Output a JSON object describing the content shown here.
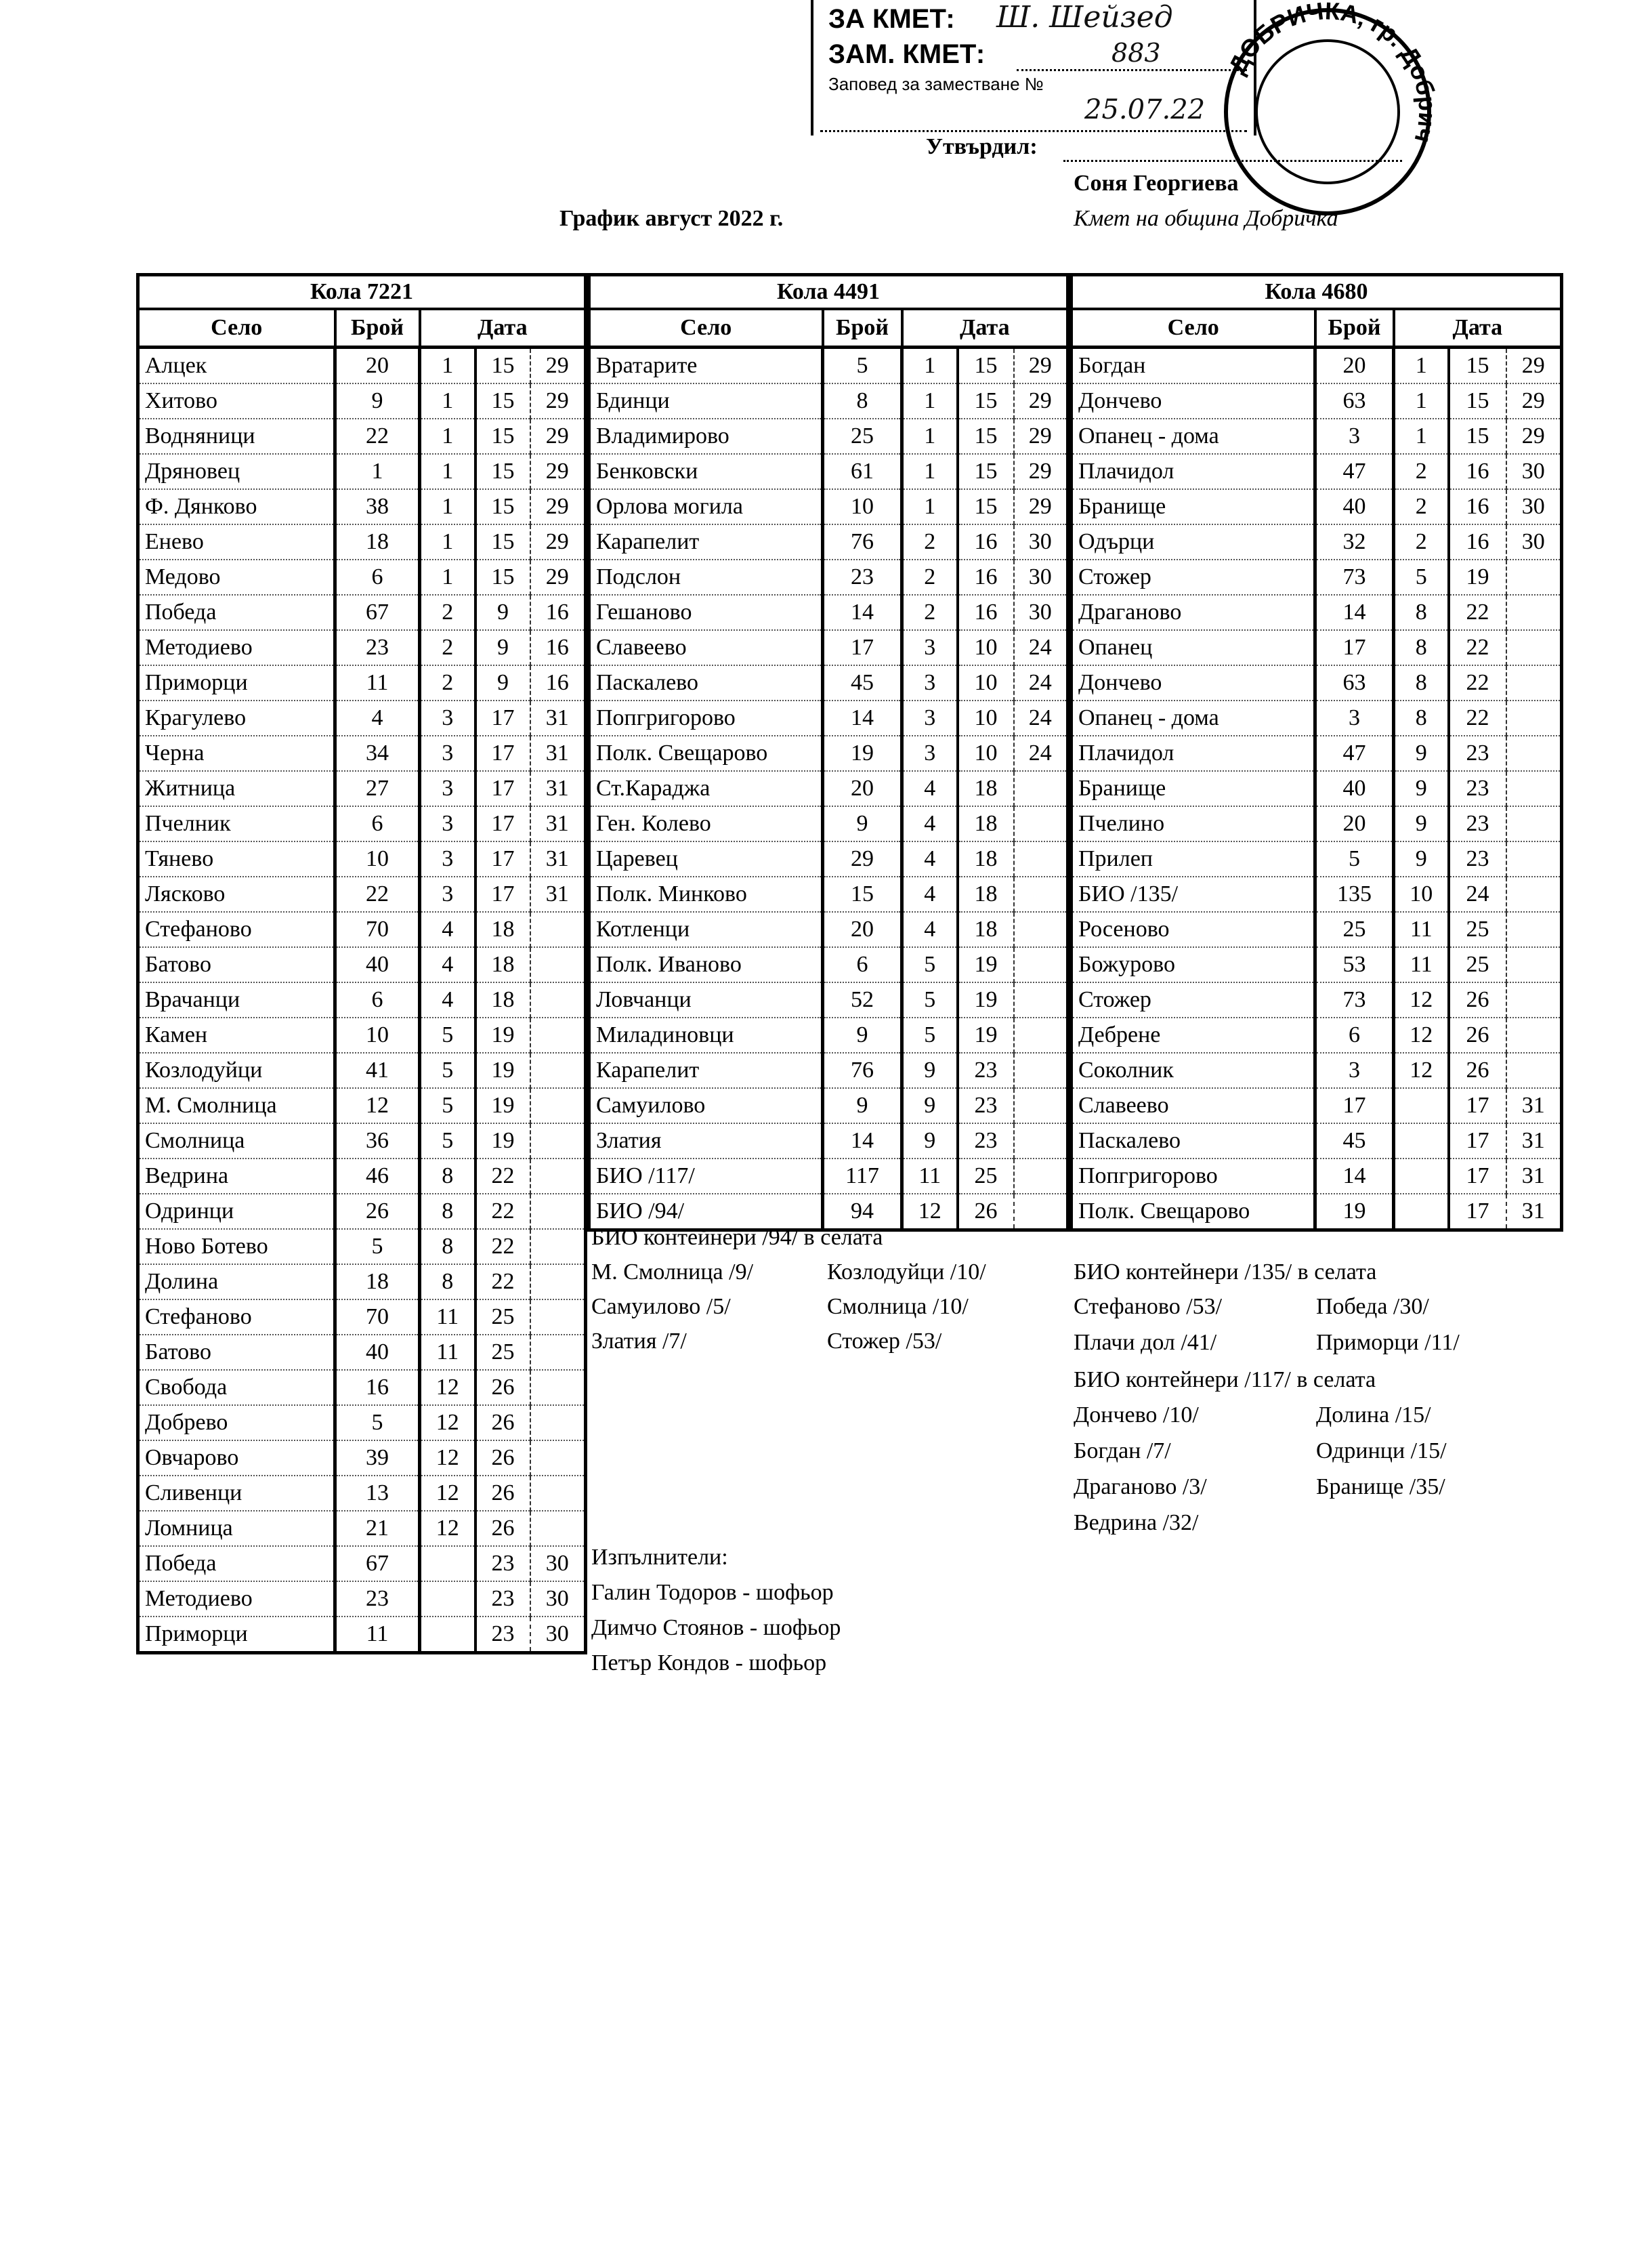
{
  "stamp": {
    "line1": "ЗА КМЕТ:",
    "line2": "ЗАМ. КМЕТ:",
    "line3": "Заповед за заместване №",
    "signature": "Ш. Шейзед",
    "order_number": "883",
    "order_date": "25.07.22"
  },
  "seal": {
    "text": "ДОБРИЧКА, гр. Добрич"
  },
  "approval": {
    "label": "Утвърдил:",
    "name": "Соня Георгиева",
    "position": "Кмет  на община Добричка"
  },
  "title": "График август 2022 г.",
  "column_headers": {
    "village": "Село",
    "count": "Брой",
    "date": "Дата"
  },
  "tables": [
    {
      "car": "Кола 7221",
      "rows": [
        [
          "Алцек",
          "20",
          "1",
          "15",
          "29"
        ],
        [
          "Хитово",
          "9",
          "1",
          "15",
          "29"
        ],
        [
          "Водняници",
          "22",
          "1",
          "15",
          "29"
        ],
        [
          "Дряновец",
          "1",
          "1",
          "15",
          "29"
        ],
        [
          "Ф. Дянково",
          "38",
          "1",
          "15",
          "29"
        ],
        [
          "Енево",
          "18",
          "1",
          "15",
          "29"
        ],
        [
          "Медово",
          "6",
          "1",
          "15",
          "29"
        ],
        [
          "Победа",
          "67",
          "2",
          "9",
          "16"
        ],
        [
          "Методиево",
          "23",
          "2",
          "9",
          "16"
        ],
        [
          "Приморци",
          "11",
          "2",
          "9",
          "16"
        ],
        [
          "Крагулево",
          "4",
          "3",
          "17",
          "31"
        ],
        [
          "Черна",
          "34",
          "3",
          "17",
          "31"
        ],
        [
          "Житница",
          "27",
          "3",
          "17",
          "31"
        ],
        [
          "Пчелник",
          "6",
          "3",
          "17",
          "31"
        ],
        [
          "Тянево",
          "10",
          "3",
          "17",
          "31"
        ],
        [
          "Лясково",
          "22",
          "3",
          "17",
          "31"
        ],
        [
          "Стефаново",
          "70",
          "4",
          "18",
          ""
        ],
        [
          "Батово",
          "40",
          "4",
          "18",
          ""
        ],
        [
          "Врачанци",
          "6",
          "4",
          "18",
          ""
        ],
        [
          "Камен",
          "10",
          "5",
          "19",
          ""
        ],
        [
          "Козлодуйци",
          "41",
          "5",
          "19",
          ""
        ],
        [
          "М. Смолница",
          "12",
          "5",
          "19",
          ""
        ],
        [
          "Смолница",
          "36",
          "5",
          "19",
          ""
        ],
        [
          "Ведрина",
          "46",
          "8",
          "22",
          ""
        ],
        [
          "Одринци",
          "26",
          "8",
          "22",
          ""
        ],
        [
          "Ново Ботево",
          "5",
          "8",
          "22",
          ""
        ],
        [
          "Долина",
          "18",
          "8",
          "22",
          ""
        ],
        [
          "Стефаново",
          "70",
          "11",
          "25",
          ""
        ],
        [
          "Батово",
          "40",
          "11",
          "25",
          ""
        ],
        [
          "Свобода",
          "16",
          "12",
          "26",
          ""
        ],
        [
          "Добрево",
          "5",
          "12",
          "26",
          ""
        ],
        [
          "Овчарово",
          "39",
          "12",
          "26",
          ""
        ],
        [
          "Сливенци",
          "13",
          "12",
          "26",
          ""
        ],
        [
          "Ломница",
          "21",
          "12",
          "26",
          ""
        ],
        [
          "Победа",
          "67",
          "",
          "23",
          "30"
        ],
        [
          "Методиево",
          "23",
          "",
          "23",
          "30"
        ],
        [
          "Приморци",
          "11",
          "",
          "23",
          "30"
        ]
      ]
    },
    {
      "car": "Кола 4491",
      "rows": [
        [
          "Вратарите",
          "5",
          "1",
          "15",
          "29"
        ],
        [
          "Бдинци",
          "8",
          "1",
          "15",
          "29"
        ],
        [
          "Владимирово",
          "25",
          "1",
          "15",
          "29"
        ],
        [
          "Бенковски",
          "61",
          "1",
          "15",
          "29"
        ],
        [
          "Орлова могила",
          "10",
          "1",
          "15",
          "29"
        ],
        [
          "Карапелит",
          "76",
          "2",
          "16",
          "30"
        ],
        [
          "Подслон",
          "23",
          "2",
          "16",
          "30"
        ],
        [
          "Гешаново",
          "14",
          "2",
          "16",
          "30"
        ],
        [
          "Славеево",
          "17",
          "3",
          "10",
          "24"
        ],
        [
          "Паскалево",
          "45",
          "3",
          "10",
          "24"
        ],
        [
          "Попгригорово",
          "14",
          "3",
          "10",
          "24"
        ],
        [
          "Полк. Свещарово",
          "19",
          "3",
          "10",
          "24"
        ],
        [
          "Ст.Караджа",
          "20",
          "4",
          "18",
          ""
        ],
        [
          "Ген. Колево",
          "9",
          "4",
          "18",
          ""
        ],
        [
          "Царевец",
          "29",
          "4",
          "18",
          ""
        ],
        [
          "Полк. Минково",
          "15",
          "4",
          "18",
          ""
        ],
        [
          "Котленци",
          "20",
          "4",
          "18",
          ""
        ],
        [
          "Полк. Иваново",
          "6",
          "5",
          "19",
          ""
        ],
        [
          "Ловчанци",
          "52",
          "5",
          "19",
          ""
        ],
        [
          "Миладиновци",
          "9",
          "5",
          "19",
          ""
        ],
        [
          "Карапелит",
          "76",
          "9",
          "23",
          ""
        ],
        [
          "Самуилово",
          "9",
          "9",
          "23",
          ""
        ],
        [
          "Златия",
          "14",
          "9",
          "23",
          ""
        ],
        [
          "БИО /117/",
          "117",
          "11",
          "25",
          ""
        ],
        [
          "БИО /94/",
          "94",
          "12",
          "26",
          ""
        ]
      ]
    },
    {
      "car": "Кола 4680",
      "rows": [
        [
          "Богдан",
          "20",
          "1",
          "15",
          "29"
        ],
        [
          "Дончево",
          "63",
          "1",
          "15",
          "29"
        ],
        [
          "Опанец - дома",
          "3",
          "1",
          "15",
          "29"
        ],
        [
          "Плачидол",
          "47",
          "2",
          "16",
          "30"
        ],
        [
          "Бранище",
          "40",
          "2",
          "16",
          "30"
        ],
        [
          "Одърци",
          "32",
          "2",
          "16",
          "30"
        ],
        [
          "Стожер",
          "73",
          "5",
          "19",
          ""
        ],
        [
          "Драганово",
          "14",
          "8",
          "22",
          ""
        ],
        [
          "Опанец",
          "17",
          "8",
          "22",
          ""
        ],
        [
          "Дончево",
          "63",
          "8",
          "22",
          ""
        ],
        [
          "Опанец - дома",
          "3",
          "8",
          "22",
          ""
        ],
        [
          "Плачидол",
          "47",
          "9",
          "23",
          ""
        ],
        [
          "Бранище",
          "40",
          "9",
          "23",
          ""
        ],
        [
          "Пчелино",
          "20",
          "9",
          "23",
          ""
        ],
        [
          "Прилеп",
          "5",
          "9",
          "23",
          ""
        ],
        [
          "БИО /135/",
          "135",
          "10",
          "24",
          ""
        ],
        [
          "Росеново",
          "25",
          "11",
          "25",
          ""
        ],
        [
          "Божурово",
          "53",
          "11",
          "25",
          ""
        ],
        [
          "Стожер",
          "73",
          "12",
          "26",
          ""
        ],
        [
          "Дебрене",
          "6",
          "12",
          "26",
          ""
        ],
        [
          "Соколник",
          "3",
          "12",
          "26",
          ""
        ],
        [
          "Славеево",
          "17",
          "",
          "17",
          "31"
        ],
        [
          "Паскалево",
          "45",
          "",
          "17",
          "31"
        ],
        [
          "Попгригорово",
          "14",
          "",
          "17",
          "31"
        ],
        [
          "Полк. Свещарово",
          "19",
          "",
          "17",
          "31"
        ]
      ]
    }
  ],
  "notes_94": {
    "heading": "БИО контейнери /94/ в селата",
    "items": [
      "М. Смолница /9/",
      "Козлодуйци /10/",
      "Самуилово /5/",
      "Смолница /10/",
      "Златия /7/",
      "Стожер /53/"
    ]
  },
  "notes_135": {
    "heading": "БИО контейнери /135/ в селата",
    "items": [
      "Стефаново /53/",
      "Победа /30/",
      "Плачи дол /41/",
      "Приморци /11/"
    ]
  },
  "notes_117": {
    "heading": "БИО контейнери /117/ в селата",
    "items": [
      "Дончево /10/",
      "Долина /15/",
      "Богдан /7/",
      "Одринци /15/",
      "Драганово /3/",
      "Бранище /35/",
      "Ведрина /32/"
    ]
  },
  "executors": {
    "heading": "Изпълнители:",
    "people": [
      "Галин Тодоров - шофьор",
      "Димчо Стоянов - шофьор",
      "Петър Кондов - шофьор"
    ]
  }
}
